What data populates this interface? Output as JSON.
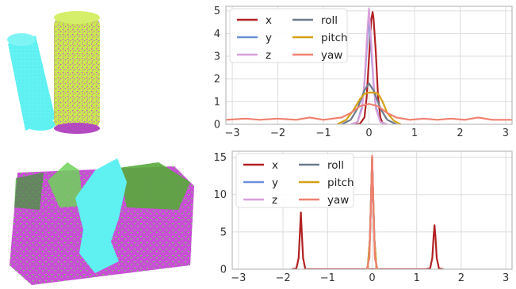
{
  "render": {
    "top_left": "two-cylinders",
    "bottom_left": "point-cloud-block",
    "colors": {
      "cyan": "#5ff0f2",
      "yellowgreen": "#c8e84f",
      "magenta": "#cc4fd8",
      "green": "#58a83a"
    }
  },
  "chart_data": [
    {
      "type": "line",
      "xlim": [
        -3.14,
        3.14
      ],
      "ylim": [
        0,
        5.2
      ],
      "xticks": [
        -3,
        -2,
        -1,
        0,
        1,
        2,
        3
      ],
      "yticks": [
        0,
        1,
        2,
        3,
        4,
        5
      ],
      "grid": true,
      "legend": "top-left",
      "legend_entries": [
        "x",
        "y",
        "z",
        "roll",
        "pitch",
        "yaw"
      ],
      "series": [
        {
          "name": "x",
          "color": "#b22222",
          "x": [
            -0.3,
            -0.2,
            -0.1,
            -0.05,
            0.0,
            0.05,
            0.08,
            0.1,
            0.15,
            0.2,
            0.25,
            0.3,
            0.4
          ],
          "y": [
            0,
            0.02,
            0.3,
            1.2,
            2.9,
            4.6,
            4.95,
            4.7,
            3.2,
            1.2,
            0.3,
            0.05,
            0
          ]
        },
        {
          "name": "y",
          "color": "#6a8fd8",
          "x": [
            -0.4,
            -0.25,
            -0.15,
            -0.1,
            -0.05,
            0.0,
            0.05,
            0.1,
            0.15,
            0.25,
            0.4
          ],
          "y": [
            0,
            0.1,
            0.8,
            1.8,
            3.3,
            4.8,
            3.3,
            1.8,
            0.8,
            0.1,
            0
          ]
        },
        {
          "name": "z",
          "color": "#d8a0dc",
          "x": [
            -0.4,
            -0.25,
            -0.15,
            -0.1,
            -0.05,
            0.0,
            0.05,
            0.1,
            0.15,
            0.25,
            0.4
          ],
          "y": [
            0,
            0.1,
            0.7,
            1.9,
            3.6,
            5.1,
            3.6,
            1.9,
            0.7,
            0.1,
            0
          ]
        },
        {
          "name": "roll",
          "color": "#6c7a8c",
          "x": [
            -0.6,
            -0.4,
            -0.25,
            -0.1,
            0.0,
            0.1,
            0.25,
            0.4,
            0.6
          ],
          "y": [
            0,
            0.2,
            0.7,
            1.5,
            1.8,
            1.5,
            0.7,
            0.2,
            0
          ]
        },
        {
          "name": "pitch",
          "color": "#d4a017",
          "x": [
            -0.7,
            -0.5,
            -0.35,
            -0.2,
            -0.1,
            0.0,
            0.1,
            0.2,
            0.3,
            0.4,
            0.55,
            0.7
          ],
          "y": [
            0,
            0.2,
            0.6,
            1.1,
            1.35,
            1.4,
            1.4,
            1.35,
            1.0,
            0.5,
            0.15,
            0
          ]
        },
        {
          "name": "yaw",
          "color": "#f08070",
          "x": [
            -3.14,
            -2.7,
            -2.4,
            -2.0,
            -1.6,
            -1.3,
            -1.0,
            -0.6,
            -0.4,
            -0.2,
            0.0,
            0.2,
            0.4,
            0.6,
            0.9,
            1.2,
            1.5,
            1.8,
            2.1,
            2.4,
            2.7,
            3.14
          ],
          "y": [
            0.2,
            0.25,
            0.2,
            0.25,
            0.2,
            0.3,
            0.2,
            0.3,
            0.5,
            0.8,
            0.9,
            0.8,
            0.5,
            0.3,
            0.2,
            0.25,
            0.2,
            0.25,
            0.2,
            0.3,
            0.2,
            0.2
          ]
        }
      ]
    },
    {
      "type": "line",
      "xlim": [
        -3.14,
        3.14
      ],
      "ylim": [
        0,
        15.8
      ],
      "xticks": [
        -3,
        -2,
        -1,
        0,
        1,
        2,
        3
      ],
      "yticks": [
        0,
        5,
        10,
        15
      ],
      "grid": true,
      "legend": "top-left",
      "legend_entries": [
        "x",
        "y",
        "z",
        "roll",
        "pitch",
        "yaw"
      ],
      "series": [
        {
          "name": "x",
          "color": "#b22222",
          "x": [
            -1.8,
            -1.7,
            -1.65,
            -1.62,
            -1.6,
            -1.58,
            -1.55,
            -1.5,
            1.2,
            1.3,
            1.35,
            1.38,
            1.4,
            1.42,
            1.45,
            1.5,
            1.6
          ],
          "y": [
            0,
            0.1,
            1.5,
            5.0,
            7.6,
            5.0,
            1.5,
            0,
            0,
            0.1,
            1.5,
            4.5,
            5.9,
            4.5,
            1.5,
            0.1,
            0
          ]
        },
        {
          "name": "y",
          "color": "#6a8fd8",
          "x": [
            -0.1,
            -0.05,
            0.0,
            0.05,
            0.1
          ],
          "y": [
            0,
            4.0,
            14.8,
            4.0,
            0
          ]
        },
        {
          "name": "z",
          "color": "#d8a0dc",
          "x": [
            -0.1,
            -0.05,
            0.0,
            0.05,
            0.1
          ],
          "y": [
            0,
            4.2,
            15.0,
            4.2,
            0
          ]
        },
        {
          "name": "roll",
          "color": "#6c7a8c",
          "x": [
            -0.1,
            -0.05,
            0.0,
            0.05,
            0.1
          ],
          "y": [
            0,
            4.1,
            15.0,
            4.1,
            0
          ]
        },
        {
          "name": "pitch",
          "color": "#d4a017",
          "x": [
            -0.1,
            -0.05,
            0.0,
            0.05,
            0.1
          ],
          "y": [
            0,
            4.0,
            14.9,
            4.0,
            0
          ]
        },
        {
          "name": "yaw",
          "color": "#f08070",
          "x": [
            -0.12,
            -0.06,
            -0.03,
            0.0,
            0.03,
            0.06,
            0.12
          ],
          "y": [
            0,
            1.5,
            8.0,
            15.2,
            8.0,
            1.5,
            0
          ]
        }
      ]
    }
  ]
}
